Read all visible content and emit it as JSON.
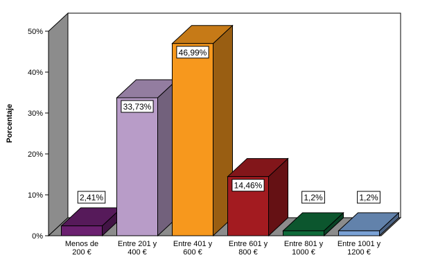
{
  "chart_data": {
    "type": "bar",
    "style": "3d",
    "ylabel": "Porcentaje",
    "xlabel": "",
    "ylim": [
      0,
      50
    ],
    "yticks": [
      0,
      10,
      20,
      30,
      40,
      50
    ],
    "ytick_labels": [
      "0%",
      "10%",
      "20%",
      "30%",
      "40%",
      "50%"
    ],
    "grid": false,
    "legend": "none",
    "categories": [
      [
        "Menos de",
        "200 €"
      ],
      [
        "Entre 201 y",
        "400 €"
      ],
      [
        "Entre 401 y",
        "600 €"
      ],
      [
        "Entre 601 y",
        "800 €"
      ],
      [
        "Entre 801 y",
        "1000 €"
      ],
      [
        "Entre 1001 y",
        "1200 €"
      ]
    ],
    "values": [
      2.41,
      33.73,
      46.99,
      14.46,
      1.2,
      1.2
    ],
    "data_labels": [
      "2,41%",
      "33,73%",
      "46,99%",
      "14,46%",
      "1,2%",
      "1,2%"
    ],
    "colors": [
      "#6b2070",
      "#b89cc8",
      "#f7981d",
      "#a31b20",
      "#0f6b3a",
      "#7aa2d6"
    ],
    "wall_color": "#8c8c8c"
  }
}
